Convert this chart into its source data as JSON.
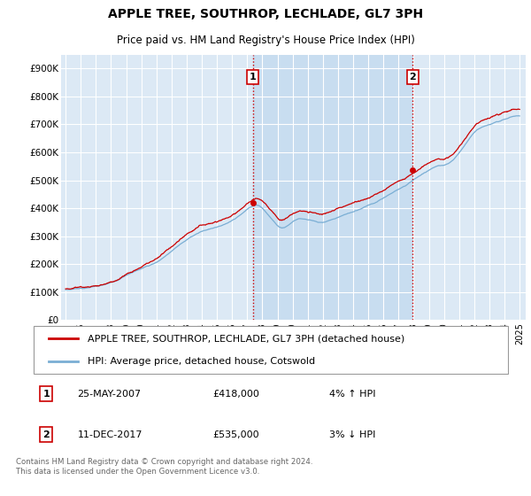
{
  "title": "APPLE TREE, SOUTHROP, LECHLADE, GL7 3PH",
  "subtitle": "Price paid vs. HM Land Registry's House Price Index (HPI)",
  "ylabel_ticks": [
    "£0",
    "£100K",
    "£200K",
    "£300K",
    "£400K",
    "£500K",
    "£600K",
    "£700K",
    "£800K",
    "£900K"
  ],
  "ytick_vals": [
    0,
    100000,
    200000,
    300000,
    400000,
    500000,
    600000,
    700000,
    800000,
    900000
  ],
  "ylim": [
    0,
    950000
  ],
  "xlim_start": 1994.7,
  "xlim_end": 2025.4,
  "background_color": "#dce9f5",
  "shade_color": "#c8ddf0",
  "grid_color": "#ffffff",
  "sale1_x": 2007.38,
  "sale1_y": 418000,
  "sale1_label": "1",
  "sale2_x": 2017.94,
  "sale2_y": 535000,
  "sale2_label": "2",
  "vline1_x": 2007.38,
  "vline2_x": 2017.94,
  "vline_color": "#cc0000",
  "legend_label_red": "APPLE TREE, SOUTHROP, LECHLADE, GL7 3PH (detached house)",
  "legend_label_blue": "HPI: Average price, detached house, Cotswold",
  "annotation1_date": "25-MAY-2007",
  "annotation1_price": "£418,000",
  "annotation1_hpi": "4% ↑ HPI",
  "annotation2_date": "11-DEC-2017",
  "annotation2_price": "£535,000",
  "annotation2_hpi": "3% ↓ HPI",
  "footer": "Contains HM Land Registry data © Crown copyright and database right 2024.\nThis data is licensed under the Open Government Licence v3.0.",
  "red_color": "#cc0000",
  "blue_color": "#7aaed4",
  "title_fontsize": 10,
  "subtitle_fontsize": 8.5,
  "tick_fontsize": 7.5,
  "legend_fontsize": 8,
  "ann_fontsize": 8
}
